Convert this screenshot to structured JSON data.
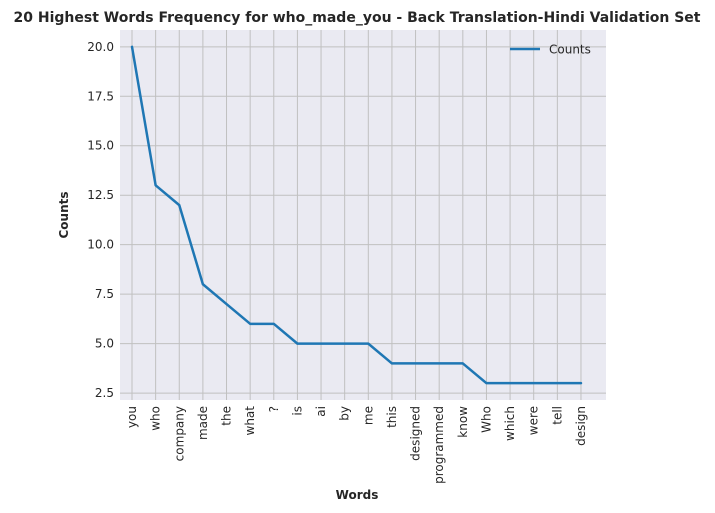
{
  "chart_data": {
    "type": "line",
    "title": "20 Highest Words Frequency for who_made_you - Back Translation-Hindi Validation Set",
    "xlabel": "Words",
    "ylabel": "Counts",
    "categories": [
      "you",
      "who",
      "company",
      "made",
      "the",
      "what",
      "?",
      "is",
      "ai",
      "by",
      "me",
      "this",
      "designed",
      "programmed",
      "know",
      "Who",
      "which",
      "were",
      "tell",
      "design"
    ],
    "series": [
      {
        "name": "Counts",
        "values": [
          20,
          13,
          12,
          8,
          7,
          6,
          6,
          5,
          5,
          5,
          5,
          4,
          4,
          4,
          4,
          3,
          3,
          3,
          3,
          3
        ]
      }
    ],
    "yticks": [
      "2.5",
      "5.0",
      "7.5",
      "10.0",
      "12.5",
      "15.0",
      "17.5",
      "20.0"
    ],
    "ylim": [
      2.15,
      20.85
    ],
    "grid": true,
    "legend_position": "top-right",
    "colors": {
      "line": "#1f77b4",
      "plot_bg": "#eaeaf2",
      "grid": "#c0c0c0"
    }
  }
}
